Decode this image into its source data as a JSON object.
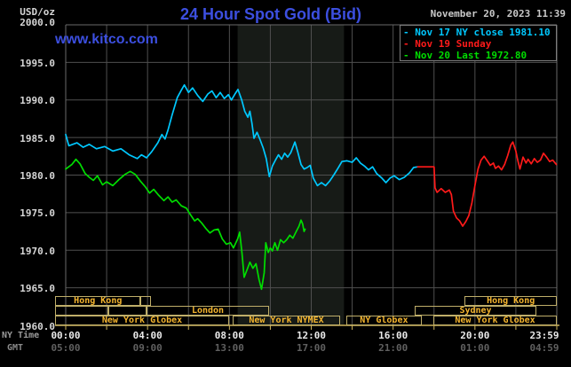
{
  "header": {
    "units": "USD/oz",
    "title": "24 Hour Spot Gold (Bid)",
    "datetime": "November 20, 2023 11:39",
    "watermark": "www.kitco.com"
  },
  "legend": [
    {
      "dash": "-",
      "text": "Nov 17 NY close 1981.10",
      "color": "#00c8ff"
    },
    {
      "dash": "-",
      "text": "Nov 19 Sunday",
      "color": "#ff1a1a"
    },
    {
      "dash": "-",
      "text": "Nov 20 Last 1972.80",
      "color": "#00dd00"
    }
  ],
  "colors": {
    "title_blue": "#3c4fe0",
    "grid": "#4f4f4f",
    "border": "#6a6a6a",
    "axis_gold": "#cdb35a",
    "session_border": "#bfae69",
    "session_text": "#f5b52e",
    "band": "#171b17",
    "nov17": "#00c8ff",
    "nov19": "#ff1a1a",
    "nov20": "#00dd00"
  },
  "chart_data": {
    "type": "line",
    "title": "24 Hour Spot Gold (Bid)",
    "ylabel": "USD/oz",
    "y_axis": {
      "min": 1960,
      "max": 2000,
      "step": 5,
      "tick_labels": [
        "2000.0",
        "1995.0",
        "1990.0",
        "1985.0",
        "1980.0",
        "1975.0",
        "1970.0",
        "1965.0",
        "1960.0"
      ],
      "tick_values": [
        2000,
        1995,
        1990,
        1985,
        1980,
        1975,
        1970,
        1965,
        1960
      ]
    },
    "x_axis": {
      "row1_label": "NY Time",
      "row2_label": "GMT",
      "range_hours": [
        0,
        24
      ],
      "grid_step_hours": 2,
      "tick_hours": [
        0,
        4,
        8,
        12,
        16,
        20,
        23.98
      ],
      "ticks_ny": [
        "00:00",
        "04:00",
        "08:00",
        "12:00",
        "16:00",
        "20:00",
        "23:59"
      ],
      "ticks_gmt": [
        "05:00",
        "09:00",
        "13:00",
        "17:00",
        "21:00",
        "01:00",
        "04:59"
      ]
    },
    "highlight_band_hours": [
      8.4,
      13.6
    ],
    "series": [
      {
        "name": "Nov 17 NY close 1981.10",
        "color": "#00c8ff",
        "points": [
          [
            0,
            1985.4
          ],
          [
            0.15,
            1983.9
          ],
          [
            0.55,
            1984.3
          ],
          [
            0.85,
            1983.7
          ],
          [
            1.15,
            1984.1
          ],
          [
            1.5,
            1983.5
          ],
          [
            1.9,
            1983.8
          ],
          [
            2.3,
            1983.2
          ],
          [
            2.7,
            1983.5
          ],
          [
            3.1,
            1982.7
          ],
          [
            3.5,
            1982.2
          ],
          [
            3.7,
            1982.7
          ],
          [
            3.95,
            1982.3
          ],
          [
            4.2,
            1983.1
          ],
          [
            4.5,
            1984.3
          ],
          [
            4.7,
            1985.4
          ],
          [
            4.85,
            1984.8
          ],
          [
            5.0,
            1986.0
          ],
          [
            5.2,
            1988.0
          ],
          [
            5.45,
            1990.3
          ],
          [
            5.65,
            1991.3
          ],
          [
            5.8,
            1992.0
          ],
          [
            6.0,
            1991.0
          ],
          [
            6.2,
            1991.6
          ],
          [
            6.45,
            1990.6
          ],
          [
            6.7,
            1989.8
          ],
          [
            6.95,
            1990.8
          ],
          [
            7.15,
            1991.2
          ],
          [
            7.35,
            1990.3
          ],
          [
            7.55,
            1991.0
          ],
          [
            7.75,
            1990.2
          ],
          [
            7.95,
            1990.7
          ],
          [
            8.1,
            1990.0
          ],
          [
            8.3,
            1990.9
          ],
          [
            8.42,
            1991.4
          ],
          [
            8.6,
            1990.0
          ],
          [
            8.75,
            1988.5
          ],
          [
            8.9,
            1987.7
          ],
          [
            9.0,
            1988.5
          ],
          [
            9.1,
            1986.9
          ],
          [
            9.2,
            1984.9
          ],
          [
            9.35,
            1985.7
          ],
          [
            9.5,
            1984.7
          ],
          [
            9.65,
            1983.6
          ],
          [
            9.8,
            1982.2
          ],
          [
            9.95,
            1979.8
          ],
          [
            10.1,
            1981.2
          ],
          [
            10.25,
            1982.0
          ],
          [
            10.4,
            1982.7
          ],
          [
            10.55,
            1982.1
          ],
          [
            10.7,
            1982.9
          ],
          [
            10.85,
            1982.4
          ],
          [
            11.0,
            1983.0
          ],
          [
            11.2,
            1984.4
          ],
          [
            11.35,
            1983.0
          ],
          [
            11.5,
            1981.4
          ],
          [
            11.65,
            1980.8
          ],
          [
            11.8,
            1981.0
          ],
          [
            11.95,
            1981.3
          ],
          [
            12.1,
            1979.6
          ],
          [
            12.3,
            1978.6
          ],
          [
            12.5,
            1979.0
          ],
          [
            12.7,
            1978.6
          ],
          [
            12.9,
            1979.2
          ],
          [
            13.1,
            1980.0
          ],
          [
            13.3,
            1980.9
          ],
          [
            13.5,
            1981.8
          ],
          [
            13.75,
            1981.9
          ],
          [
            14.0,
            1981.7
          ],
          [
            14.2,
            1982.3
          ],
          [
            14.4,
            1981.6
          ],
          [
            14.6,
            1981.2
          ],
          [
            14.8,
            1980.7
          ],
          [
            15.0,
            1981.1
          ],
          [
            15.2,
            1980.2
          ],
          [
            15.45,
            1979.6
          ],
          [
            15.65,
            1979.0
          ],
          [
            15.85,
            1979.6
          ],
          [
            16.05,
            1979.9
          ],
          [
            16.3,
            1979.4
          ],
          [
            16.55,
            1979.7
          ],
          [
            16.8,
            1980.3
          ],
          [
            17.0,
            1981.0
          ],
          [
            17.2,
            1981.1
          ]
        ]
      },
      {
        "name": "Nov 19 Sunday",
        "color": "#ff1a1a",
        "points": [
          [
            17.2,
            1981.1
          ],
          [
            18.0,
            1981.1
          ],
          [
            18.05,
            1978.3
          ],
          [
            18.15,
            1977.7
          ],
          [
            18.35,
            1978.2
          ],
          [
            18.55,
            1977.7
          ],
          [
            18.75,
            1978.0
          ],
          [
            18.85,
            1977.4
          ],
          [
            18.95,
            1975.2
          ],
          [
            19.1,
            1974.3
          ],
          [
            19.25,
            1973.9
          ],
          [
            19.4,
            1973.2
          ],
          [
            19.55,
            1973.8
          ],
          [
            19.7,
            1974.6
          ],
          [
            19.85,
            1976.3
          ],
          [
            20.0,
            1978.6
          ],
          [
            20.15,
            1980.8
          ],
          [
            20.3,
            1982.0
          ],
          [
            20.45,
            1982.5
          ],
          [
            20.6,
            1981.9
          ],
          [
            20.75,
            1981.3
          ],
          [
            20.9,
            1981.6
          ],
          [
            21.0,
            1980.9
          ],
          [
            21.15,
            1981.2
          ],
          [
            21.3,
            1980.7
          ],
          [
            21.45,
            1981.4
          ],
          [
            21.6,
            1982.6
          ],
          [
            21.75,
            1984.0
          ],
          [
            21.85,
            1984.4
          ],
          [
            22.0,
            1983.2
          ],
          [
            22.1,
            1981.9
          ],
          [
            22.2,
            1980.8
          ],
          [
            22.35,
            1982.4
          ],
          [
            22.5,
            1981.6
          ],
          [
            22.6,
            1982.1
          ],
          [
            22.75,
            1981.5
          ],
          [
            22.9,
            1982.2
          ],
          [
            23.05,
            1981.7
          ],
          [
            23.2,
            1982.0
          ],
          [
            23.35,
            1982.9
          ],
          [
            23.5,
            1982.4
          ],
          [
            23.65,
            1981.8
          ],
          [
            23.8,
            1982.0
          ],
          [
            23.98,
            1981.4
          ]
        ]
      },
      {
        "name": "Nov 20 Last 1972.80",
        "color": "#00dd00",
        "points": [
          [
            0,
            1980.8
          ],
          [
            0.3,
            1981.4
          ],
          [
            0.5,
            1982.1
          ],
          [
            0.7,
            1981.5
          ],
          [
            0.95,
            1980.2
          ],
          [
            1.15,
            1979.7
          ],
          [
            1.35,
            1979.3
          ],
          [
            1.55,
            1979.9
          ],
          [
            1.8,
            1978.7
          ],
          [
            2.0,
            1979.1
          ],
          [
            2.3,
            1978.6
          ],
          [
            2.6,
            1979.4
          ],
          [
            2.9,
            1980.1
          ],
          [
            3.15,
            1980.5
          ],
          [
            3.4,
            1980.1
          ],
          [
            3.65,
            1979.2
          ],
          [
            3.9,
            1978.4
          ],
          [
            4.1,
            1977.6
          ],
          [
            4.3,
            1978.1
          ],
          [
            4.55,
            1977.3
          ],
          [
            4.8,
            1976.6
          ],
          [
            5.0,
            1977.1
          ],
          [
            5.2,
            1976.4
          ],
          [
            5.4,
            1976.7
          ],
          [
            5.65,
            1975.9
          ],
          [
            5.9,
            1975.6
          ],
          [
            6.1,
            1974.7
          ],
          [
            6.3,
            1973.9
          ],
          [
            6.45,
            1974.2
          ],
          [
            6.65,
            1973.6
          ],
          [
            6.85,
            1972.9
          ],
          [
            7.05,
            1972.3
          ],
          [
            7.25,
            1972.7
          ],
          [
            7.45,
            1972.8
          ],
          [
            7.65,
            1971.5
          ],
          [
            7.85,
            1970.8
          ],
          [
            8.05,
            1971.0
          ],
          [
            8.2,
            1970.3
          ],
          [
            8.4,
            1971.5
          ],
          [
            8.5,
            1972.4
          ],
          [
            8.62,
            1969.5
          ],
          [
            8.72,
            1966.4
          ],
          [
            8.85,
            1967.3
          ],
          [
            9.0,
            1968.4
          ],
          [
            9.15,
            1967.6
          ],
          [
            9.3,
            1968.2
          ],
          [
            9.45,
            1966.1
          ],
          [
            9.57,
            1964.8
          ],
          [
            9.7,
            1967.0
          ],
          [
            9.78,
            1971.0
          ],
          [
            9.9,
            1969.7
          ],
          [
            10.0,
            1970.3
          ],
          [
            10.1,
            1969.9
          ],
          [
            10.22,
            1971.0
          ],
          [
            10.35,
            1970.0
          ],
          [
            10.5,
            1971.4
          ],
          [
            10.65,
            1971.0
          ],
          [
            10.8,
            1971.4
          ],
          [
            10.95,
            1972.0
          ],
          [
            11.1,
            1971.6
          ],
          [
            11.25,
            1972.4
          ],
          [
            11.4,
            1973.2
          ],
          [
            11.5,
            1974.0
          ],
          [
            11.58,
            1973.5
          ],
          [
            11.65,
            1972.5
          ],
          [
            11.7,
            1972.8
          ]
        ]
      }
    ],
    "sessions": [
      {
        "row": 0,
        "label": "Hong Kong",
        "start": -0.5,
        "end": 3.65
      },
      {
        "row": 0,
        "label": "",
        "start": 3.65,
        "end": 4.17
      },
      {
        "row": 0,
        "label": "Hong Kong",
        "start": 19.5,
        "end": 24
      },
      {
        "row": 1,
        "label": "",
        "start": -0.52,
        "end": 2.08
      },
      {
        "row": 1,
        "label": "",
        "start": 2.08,
        "end": 3.95
      },
      {
        "row": 1,
        "label": "London",
        "start": 3.95,
        "end": 9.94
      },
      {
        "row": 1,
        "label": "Sydney",
        "start": 17.06,
        "end": 23.0
      },
      {
        "row": 2,
        "label": "New York Globex",
        "start": -0.52,
        "end": 7.99
      },
      {
        "row": 2,
        "label": "New York NYMEX",
        "start": 8.16,
        "end": 13.41
      },
      {
        "row": 2,
        "label": "NY Globex",
        "start": 13.71,
        "end": 17.4
      },
      {
        "row": 2,
        "label": "New York Globex",
        "start": 17.97,
        "end": 24
      }
    ]
  }
}
